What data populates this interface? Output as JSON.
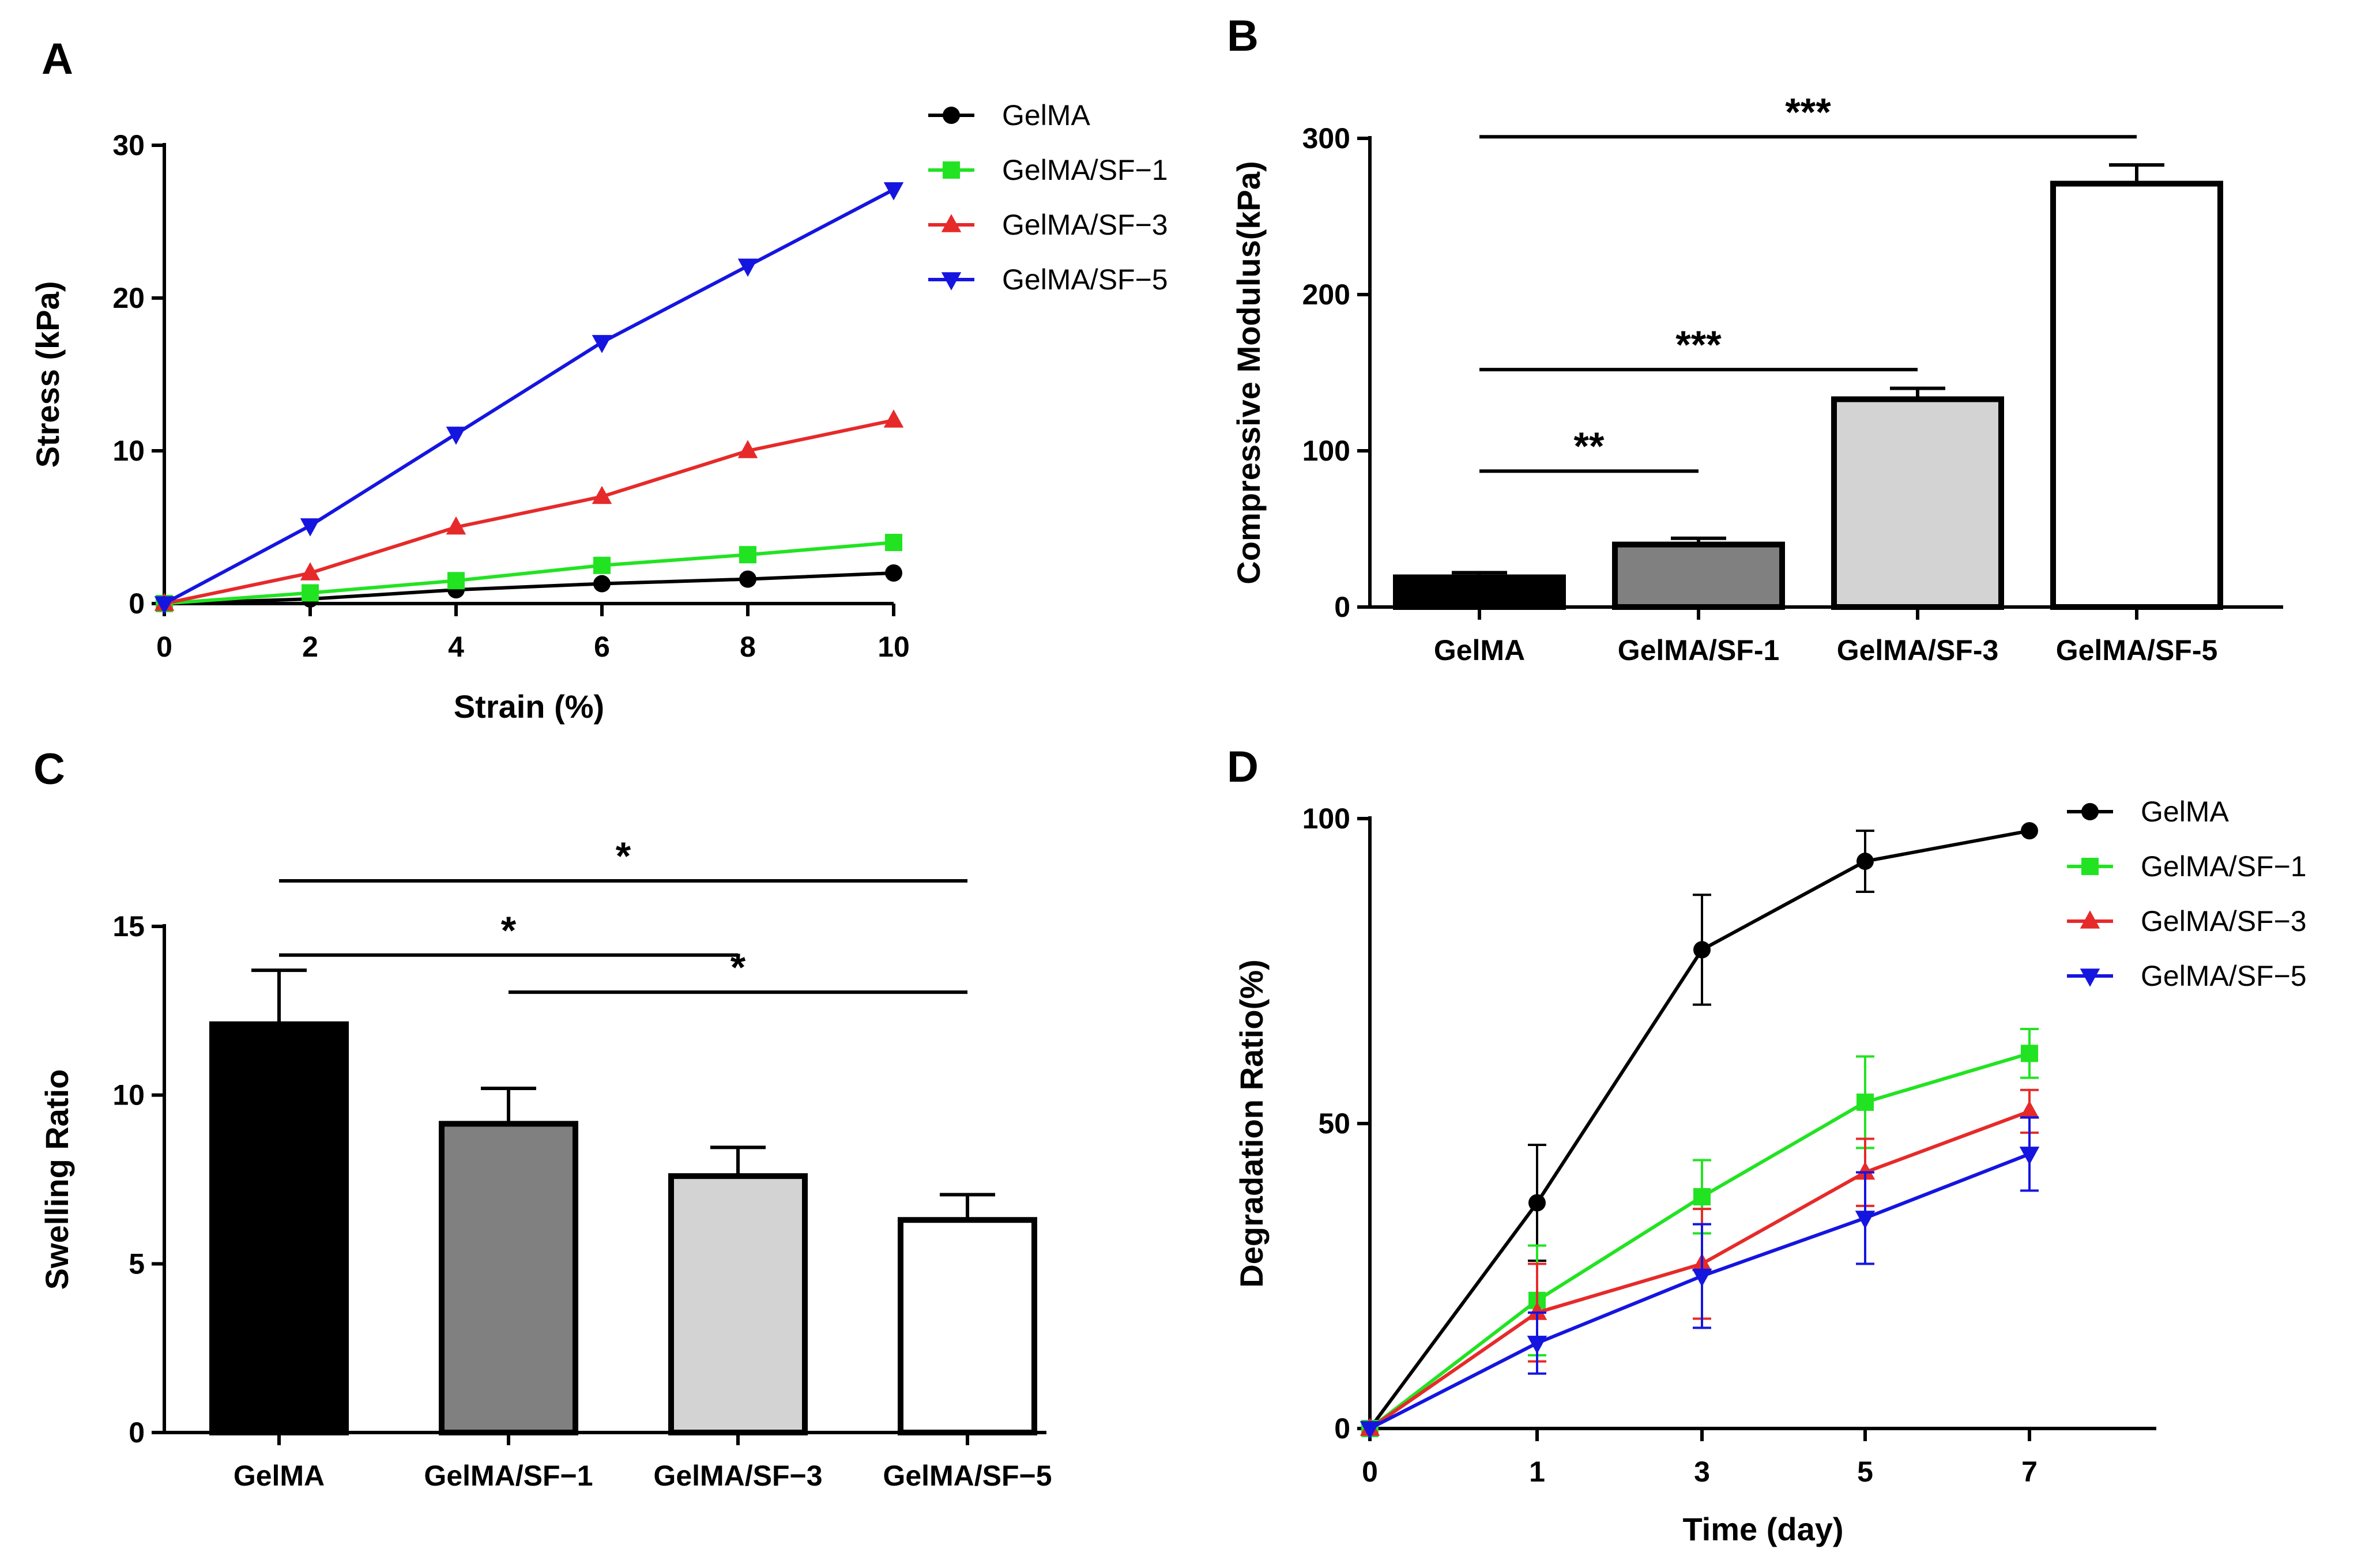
{
  "chart_data": [
    {
      "panel": "A",
      "type": "line",
      "xlabel": "Strain (%)",
      "ylabel": "Stress (kPa)",
      "xlim": [
        0,
        10
      ],
      "ylim": [
        0,
        30
      ],
      "xticks": [
        0,
        2,
        4,
        6,
        8,
        10
      ],
      "yticks": [
        0,
        10,
        20,
        30
      ],
      "x": [
        0,
        2,
        4,
        6,
        8,
        10
      ],
      "legend_position": "top-right",
      "series": [
        {
          "name": "GelMA",
          "color": "#000000",
          "marker": "circle",
          "values": [
            0,
            0.3,
            0.9,
            1.3,
            1.6,
            2.0
          ]
        },
        {
          "name": "GelMA/SF−1",
          "color": "#22e322",
          "marker": "square",
          "values": [
            0,
            0.7,
            1.5,
            2.5,
            3.2,
            4.0
          ]
        },
        {
          "name": "GelMA/SF−3",
          "color": "#e62a2a",
          "marker": "triangle-up",
          "values": [
            0,
            2.0,
            5.0,
            7.0,
            10.0,
            12.0
          ]
        },
        {
          "name": "GelMA/SF−5",
          "color": "#1515e0",
          "marker": "triangle-down",
          "values": [
            0,
            5.1,
            11.1,
            17.1,
            22.1,
            27.1
          ]
        }
      ]
    },
    {
      "panel": "B",
      "type": "bar",
      "xlabel": "",
      "ylabel": "Compressive Modulus(kPa)",
      "ylim": [
        0,
        300
      ],
      "yticks": [
        0,
        100,
        200,
        300
      ],
      "categories": [
        "GelMA",
        "GelMA/SF-1",
        "GelMA/SF-3",
        "GelMA/SF-5"
      ],
      "values": [
        19,
        40,
        133,
        271
      ],
      "errors": [
        3,
        4,
        7,
        12
      ],
      "fills": [
        "#000000",
        "#808080",
        "#d3d3d3",
        "#ffffff"
      ],
      "significance": [
        {
          "from": 0,
          "to": 1,
          "label": "**",
          "level": 87
        },
        {
          "from": 0,
          "to": 2,
          "label": "***",
          "level": 152
        },
        {
          "from": 0,
          "to": 3,
          "label": "***",
          "level": 301
        }
      ]
    },
    {
      "panel": "C",
      "type": "bar",
      "xlabel": "",
      "ylabel": "Swelling Ratio",
      "ylim": [
        0,
        15
      ],
      "yticks": [
        0,
        5,
        10,
        15
      ],
      "categories": [
        "GelMA",
        "GelMA/SF−1",
        "GelMA/SF−3",
        "GelMA/SF−5"
      ],
      "values": [
        12.1,
        9.15,
        7.6,
        6.3
      ],
      "errors": [
        1.6,
        1.05,
        0.85,
        0.75
      ],
      "fills": [
        "#000000",
        "#808080",
        "#d3d3d3",
        "#ffffff"
      ],
      "significance": [
        {
          "from": 0,
          "to": 2,
          "label": "*",
          "level": 14.15
        },
        {
          "from": 1,
          "to": 3,
          "label": "*",
          "level": 13.05
        },
        {
          "from": 0,
          "to": 3,
          "label": "*",
          "level": 16.35
        }
      ]
    },
    {
      "panel": "D",
      "type": "line",
      "xlabel": "Time (day)",
      "ylabel": "Degradation Ratio(%)",
      "xlim": [
        0,
        8
      ],
      "ylim": [
        0,
        100
      ],
      "xticks": [
        0,
        1,
        3,
        5,
        7
      ],
      "yticks": [
        0,
        50,
        100
      ],
      "x": [
        0,
        1,
        3,
        5,
        7
      ],
      "legend_position": "top-right",
      "series": [
        {
          "name": "GelMA",
          "color": "#000000",
          "marker": "circle",
          "values": [
            0,
            37,
            78.5,
            93,
            98
          ],
          "errors": [
            0,
            9.5,
            9,
            5,
            0
          ]
        },
        {
          "name": "GelMA/SF−1",
          "color": "#22e322",
          "marker": "square",
          "values": [
            0,
            21,
            38,
            53.5,
            61.5
          ],
          "errors": [
            0,
            9,
            6,
            7.5,
            4
          ]
        },
        {
          "name": "GelMA/SF−3",
          "color": "#e62a2a",
          "marker": "triangle-up",
          "values": [
            0,
            19,
            27,
            42,
            52
          ],
          "errors": [
            0,
            8,
            9,
            5.5,
            3.5
          ]
        },
        {
          "name": "GelMA/SF−5",
          "color": "#1515e0",
          "marker": "triangle-down",
          "values": [
            0,
            14,
            25,
            34.5,
            45
          ],
          "errors": [
            0,
            5,
            8.5,
            7.5,
            6
          ]
        }
      ]
    }
  ]
}
